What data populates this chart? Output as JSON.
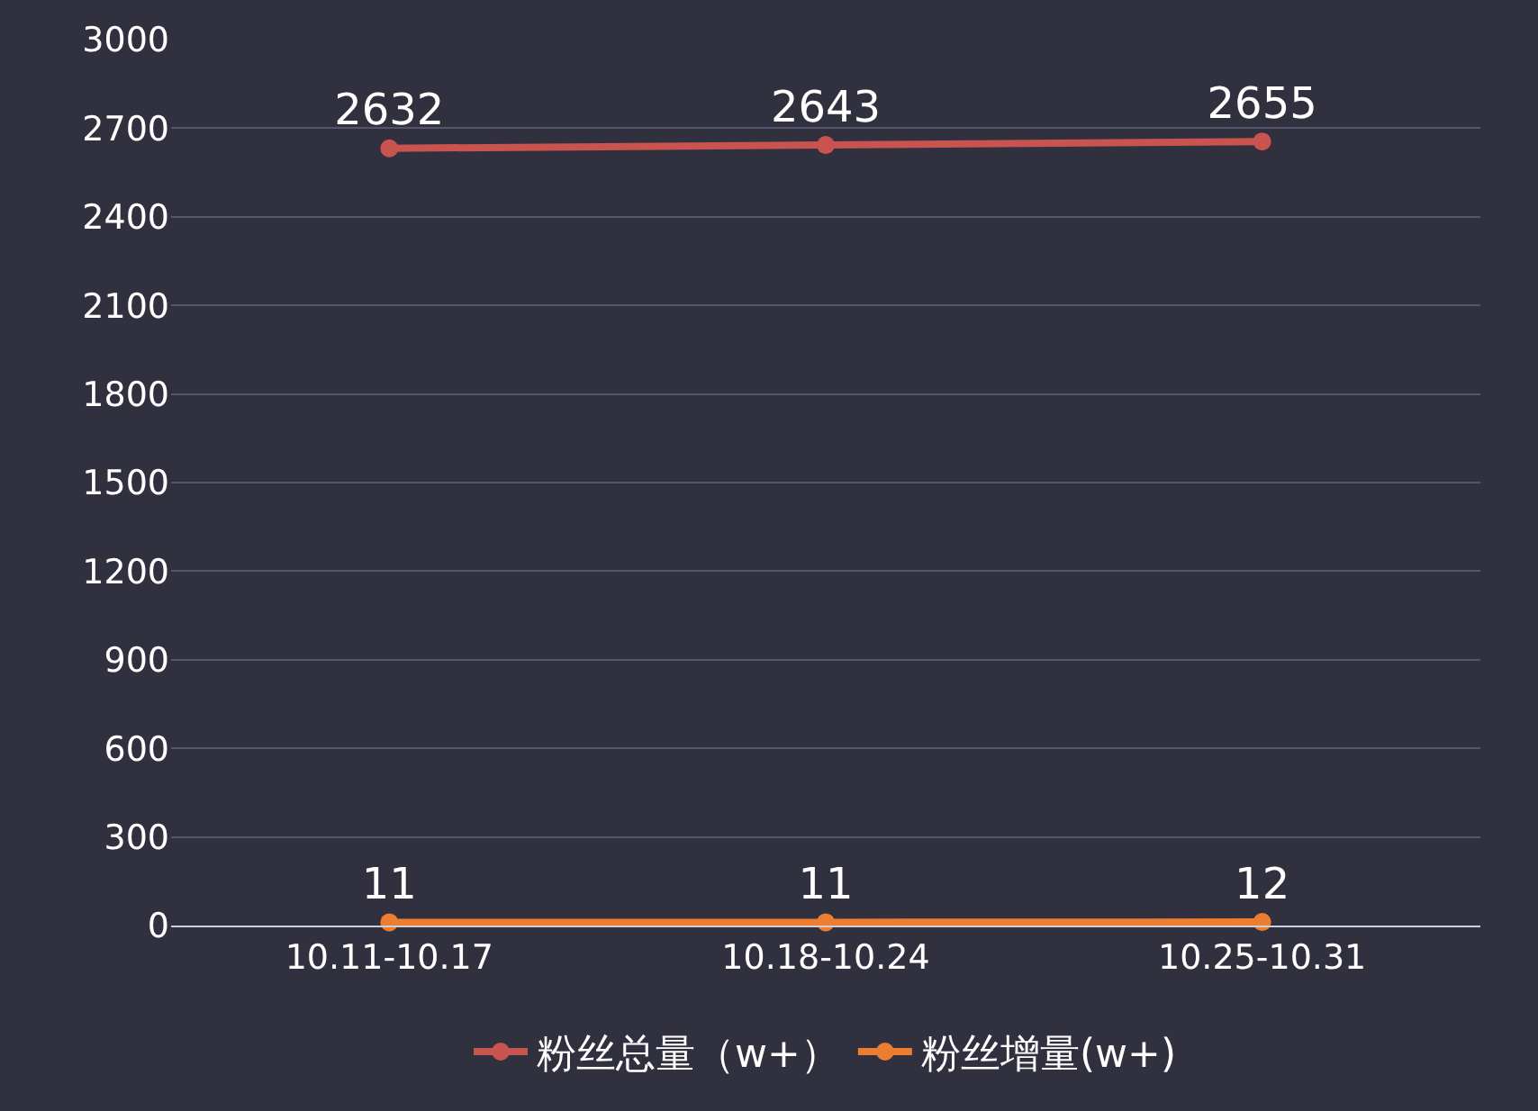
{
  "chart_data": {
    "type": "line",
    "categories": [
      "10.11-10.17",
      "10.18-10.24",
      "10.25-10.31"
    ],
    "series": [
      {
        "name": "粉丝总量（w+）",
        "color": "#c9534f",
        "values": [
          2632,
          2643,
          2655
        ]
      },
      {
        "name": "粉丝增量(w+)",
        "color": "#ed7d31",
        "values": [
          11,
          11,
          12
        ]
      }
    ],
    "ylim": [
      0,
      3000
    ],
    "yticks": [
      0,
      300,
      600,
      900,
      1200,
      1500,
      1800,
      2100,
      2400,
      2700,
      3000
    ],
    "grid": "y",
    "legend": "bottom",
    "marker": "circle",
    "line_style": "solid",
    "data_labels": true
  }
}
